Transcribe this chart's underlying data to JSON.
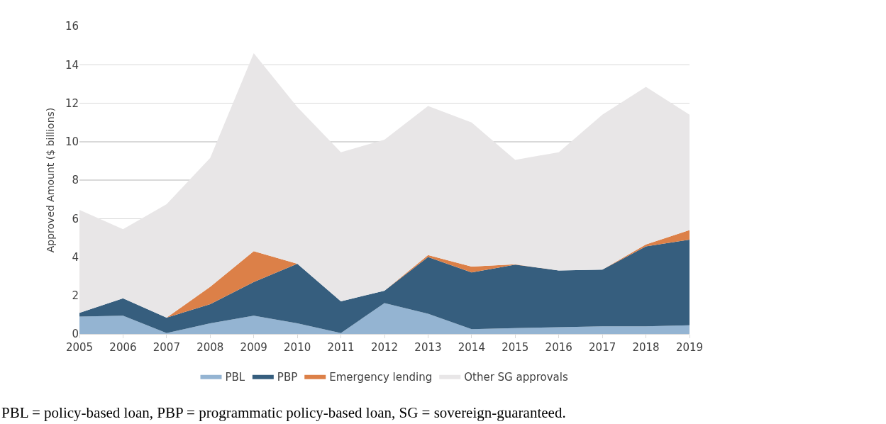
{
  "chart_data": {
    "type": "area",
    "stacked": true,
    "ylabel": "Approved Amount ($ billions)",
    "categories": [
      "2005",
      "2006",
      "2007",
      "2008",
      "2009",
      "2010",
      "2011",
      "2012",
      "2013",
      "2014",
      "2015",
      "2016",
      "2017",
      "2018",
      "2019"
    ],
    "series": [
      {
        "name": "PBL",
        "color": "#94b4d2",
        "values": [
          0.9,
          0.95,
          0.05,
          0.55,
          0.95,
          0.55,
          0.05,
          1.6,
          1.05,
          0.25,
          0.3,
          0.35,
          0.4,
          0.4,
          0.45
        ]
      },
      {
        "name": "PBP",
        "color": "#365e7e",
        "values": [
          0.2,
          0.9,
          0.8,
          1.0,
          1.75,
          3.1,
          1.65,
          0.65,
          2.95,
          2.95,
          3.3,
          2.95,
          2.95,
          4.15,
          4.45
        ]
      },
      {
        "name": "Emergency lending",
        "color": "#dc8048",
        "values": [
          0,
          0,
          0,
          0.9,
          1.6,
          0,
          0,
          0,
          0.1,
          0.3,
          0.02,
          0,
          0,
          0.1,
          0.5
        ]
      },
      {
        "name": "Other SG approvals",
        "color": "#e8e6e7",
        "values": [
          5.35,
          3.6,
          5.9,
          6.7,
          10.3,
          8.15,
          7.75,
          7.85,
          7.75,
          7.5,
          5.43,
          6.15,
          8.05,
          8.2,
          6.0
        ]
      }
    ],
    "ylim": [
      0,
      16
    ],
    "yticks": [
      0,
      2,
      4,
      6,
      8,
      10,
      12,
      14,
      16
    ],
    "grid": "y",
    "legend": "bottom",
    "annotations": [
      "PBL = policy-based loan, PBP = programmatic policy-based loan, SG = sovereign-guaranteed."
    ]
  }
}
